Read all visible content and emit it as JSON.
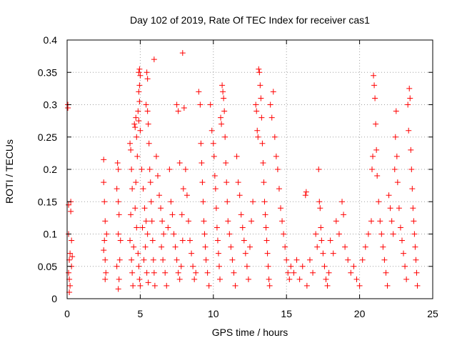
{
  "chart_data": {
    "type": "scatter",
    "title": "Day 102 of 2019, Rate Of TEC Index for receiver cas1",
    "xlabel": "GPS time / hours",
    "ylabel": "ROTI / TECUs",
    "xlim": [
      0,
      25
    ],
    "ylim": [
      0,
      0.4
    ],
    "xticks": [
      0,
      5,
      10,
      15,
      20,
      25
    ],
    "xtick_labels": [
      "0",
      "5",
      "10",
      "15",
      "20",
      "25"
    ],
    "yticks": [
      0,
      0.05,
      0.1,
      0.15,
      0.2,
      0.25,
      0.3,
      0.35,
      0.4
    ],
    "ytick_labels": [
      "0",
      "0.05",
      "0.1",
      "0.15",
      "0.2",
      "0.25",
      "0.3",
      "0.35",
      "0.4"
    ],
    "grid": true,
    "marker": "plus",
    "series": [
      {
        "name": "ROTI",
        "color": "#ff0000",
        "points": [
          [
            0.05,
            0.295
          ],
          [
            0.05,
            0.3
          ],
          [
            0.1,
            0.145
          ],
          [
            0.1,
            0.1
          ],
          [
            0.15,
            0.06
          ],
          [
            0.15,
            0.03
          ],
          [
            0.2,
            0.07
          ],
          [
            0.2,
            0.02
          ],
          [
            0.25,
            0.15
          ],
          [
            0.25,
            0.135
          ],
          [
            0.3,
            0.09
          ],
          [
            0.3,
            0.05
          ],
          [
            0.15,
            0.01
          ],
          [
            0.1,
            0.04
          ],
          [
            0.35,
            0.065
          ],
          [
            2.5,
            0.215
          ],
          [
            2.5,
            0.18
          ],
          [
            2.55,
            0.15
          ],
          [
            2.6,
            0.12
          ],
          [
            2.55,
            0.09
          ],
          [
            2.6,
            0.06
          ],
          [
            2.65,
            0.04
          ],
          [
            2.6,
            0.03
          ],
          [
            2.7,
            0.1
          ],
          [
            2.5,
            0.075
          ],
          [
            3.4,
            0.17
          ],
          [
            3.5,
            0.2
          ],
          [
            3.45,
            0.21
          ],
          [
            3.5,
            0.15
          ],
          [
            3.55,
            0.13
          ],
          [
            3.5,
            0.1
          ],
          [
            3.6,
            0.06
          ],
          [
            3.55,
            0.03
          ],
          [
            3.5,
            0.015
          ],
          [
            3.4,
            0.05
          ],
          [
            3.65,
            0.09
          ],
          [
            4.3,
            0.24
          ],
          [
            4.35,
            0.23
          ],
          [
            4.4,
            0.2
          ],
          [
            4.45,
            0.17
          ],
          [
            4.35,
            0.13
          ],
          [
            4.3,
            0.09
          ],
          [
            4.4,
            0.06
          ],
          [
            4.45,
            0.04
          ],
          [
            4.5,
            0.02
          ],
          [
            4.55,
            0.08
          ],
          [
            4.6,
            0.27
          ],
          [
            4.65,
            0.265
          ],
          [
            4.7,
            0.28
          ],
          [
            4.75,
            0.25
          ],
          [
            4.8,
            0.22
          ],
          [
            4.7,
            0.18
          ],
          [
            4.65,
            0.14
          ],
          [
            4.75,
            0.11
          ],
          [
            4.85,
            0.07
          ],
          [
            4.9,
            0.05
          ],
          [
            4.95,
            0.03
          ],
          [
            5.0,
            0.02
          ],
          [
            4.9,
            0.35
          ],
          [
            4.95,
            0.355
          ],
          [
            5.0,
            0.345
          ],
          [
            4.95,
            0.33
          ],
          [
            4.9,
            0.32
          ],
          [
            4.95,
            0.305
          ],
          [
            4.85,
            0.29
          ],
          [
            4.9,
            0.275
          ],
          [
            5.0,
            0.26
          ],
          [
            5.1,
            0.2
          ],
          [
            5.2,
            0.17
          ],
          [
            5.3,
            0.14
          ],
          [
            5.4,
            0.12
          ],
          [
            5.5,
            0.1
          ],
          [
            5.35,
            0.08
          ],
          [
            5.25,
            0.06
          ],
          [
            5.45,
            0.04
          ],
          [
            5.55,
            0.025
          ],
          [
            5.15,
            0.11
          ],
          [
            5.45,
            0.35
          ],
          [
            5.5,
            0.34
          ],
          [
            5.4,
            0.3
          ],
          [
            5.5,
            0.29
          ],
          [
            5.55,
            0.27
          ],
          [
            5.6,
            0.24
          ],
          [
            5.65,
            0.2
          ],
          [
            5.7,
            0.18
          ],
          [
            5.75,
            0.15
          ],
          [
            5.8,
            0.12
          ],
          [
            5.85,
            0.09
          ],
          [
            5.9,
            0.06
          ],
          [
            5.95,
            0.04
          ],
          [
            6.0,
            0.02
          ],
          [
            5.95,
            0.37
          ],
          [
            6.1,
            0.22
          ],
          [
            6.2,
            0.19
          ],
          [
            6.3,
            0.16
          ],
          [
            6.4,
            0.14
          ],
          [
            6.5,
            0.12
          ],
          [
            6.6,
            0.1
          ],
          [
            6.45,
            0.08
          ],
          [
            6.55,
            0.06
          ],
          [
            6.7,
            0.04
          ],
          [
            6.8,
            0.02
          ],
          [
            6.9,
            0.11
          ],
          [
            7.0,
            0.2
          ],
          [
            7.1,
            0.15
          ],
          [
            7.2,
            0.13
          ],
          [
            7.3,
            0.1
          ],
          [
            7.4,
            0.08
          ],
          [
            7.5,
            0.06
          ],
          [
            7.6,
            0.04
          ],
          [
            7.7,
            0.03
          ],
          [
            7.8,
            0.05
          ],
          [
            7.9,
            0.09
          ],
          [
            7.85,
            0.13
          ],
          [
            7.95,
            0.17
          ],
          [
            7.5,
            0.3
          ],
          [
            7.6,
            0.29
          ],
          [
            7.7,
            0.21
          ],
          [
            7.9,
            0.38
          ],
          [
            8.0,
            0.295
          ],
          [
            8.1,
            0.2
          ],
          [
            8.2,
            0.16
          ],
          [
            8.3,
            0.12
          ],
          [
            8.4,
            0.09
          ],
          [
            8.5,
            0.07
          ],
          [
            8.6,
            0.05
          ],
          [
            8.7,
            0.03
          ],
          [
            8.8,
            0.04
          ],
          [
            9.0,
            0.32
          ],
          [
            9.1,
            0.3
          ],
          [
            9.15,
            0.24
          ],
          [
            9.2,
            0.21
          ],
          [
            9.25,
            0.18
          ],
          [
            9.3,
            0.15
          ],
          [
            9.35,
            0.12
          ],
          [
            9.4,
            0.1
          ],
          [
            9.45,
            0.08
          ],
          [
            9.5,
            0.06
          ],
          [
            9.6,
            0.04
          ],
          [
            9.7,
            0.02
          ],
          [
            9.8,
            0.3
          ],
          [
            9.9,
            0.26
          ],
          [
            10.0,
            0.24
          ],
          [
            10.05,
            0.22
          ],
          [
            10.1,
            0.19
          ],
          [
            10.15,
            0.17
          ],
          [
            10.2,
            0.14
          ],
          [
            10.25,
            0.11
          ],
          [
            10.3,
            0.09
          ],
          [
            10.35,
            0.07
          ],
          [
            10.4,
            0.05
          ],
          [
            10.45,
            0.03
          ],
          [
            10.5,
            0.28
          ],
          [
            10.55,
            0.27
          ],
          [
            10.6,
            0.33
          ],
          [
            10.65,
            0.32
          ],
          [
            10.7,
            0.31
          ],
          [
            10.75,
            0.29
          ],
          [
            10.8,
            0.25
          ],
          [
            10.85,
            0.21
          ],
          [
            10.9,
            0.18
          ],
          [
            10.95,
            0.15
          ],
          [
            11.0,
            0.12
          ],
          [
            11.1,
            0.1
          ],
          [
            11.2,
            0.08
          ],
          [
            11.3,
            0.06
          ],
          [
            11.4,
            0.04
          ],
          [
            11.5,
            0.02
          ],
          [
            11.6,
            0.22
          ],
          [
            11.7,
            0.18
          ],
          [
            11.8,
            0.16
          ],
          [
            11.9,
            0.13
          ],
          [
            12.0,
            0.11
          ],
          [
            12.1,
            0.09
          ],
          [
            12.2,
            0.07
          ],
          [
            12.3,
            0.05
          ],
          [
            12.4,
            0.03
          ],
          [
            12.5,
            0.08
          ],
          [
            12.6,
            0.12
          ],
          [
            12.7,
            0.15
          ],
          [
            12.9,
            0.3
          ],
          [
            12.95,
            0.29
          ],
          [
            13.0,
            0.26
          ],
          [
            13.05,
            0.25
          ],
          [
            13.1,
            0.355
          ],
          [
            13.15,
            0.35
          ],
          [
            13.2,
            0.33
          ],
          [
            13.25,
            0.31
          ],
          [
            13.3,
            0.28
          ],
          [
            13.35,
            0.24
          ],
          [
            13.4,
            0.21
          ],
          [
            13.45,
            0.18
          ],
          [
            13.5,
            0.15
          ],
          [
            13.55,
            0.13
          ],
          [
            13.6,
            0.11
          ],
          [
            13.65,
            0.09
          ],
          [
            13.7,
            0.07
          ],
          [
            13.75,
            0.05
          ],
          [
            13.8,
            0.03
          ],
          [
            13.85,
            0.02
          ],
          [
            13.9,
            0.3
          ],
          [
            14.0,
            0.28
          ],
          [
            14.1,
            0.32
          ],
          [
            14.2,
            0.25
          ],
          [
            14.3,
            0.22
          ],
          [
            14.4,
            0.2
          ],
          [
            14.5,
            0.17
          ],
          [
            14.6,
            0.14
          ],
          [
            14.7,
            0.12
          ],
          [
            14.8,
            0.1
          ],
          [
            14.9,
            0.08
          ],
          [
            15.0,
            0.06
          ],
          [
            15.1,
            0.04
          ],
          [
            15.2,
            0.03
          ],
          [
            15.3,
            0.05
          ],
          [
            15.5,
            0.04
          ],
          [
            15.7,
            0.06
          ],
          [
            15.9,
            0.03
          ],
          [
            16.1,
            0.05
          ],
          [
            16.3,
            0.16
          ],
          [
            16.35,
            0.165
          ],
          [
            16.4,
            0.02
          ],
          [
            16.6,
            0.06
          ],
          [
            16.8,
            0.04
          ],
          [
            17.0,
            0.1
          ],
          [
            17.1,
            0.08
          ],
          [
            17.2,
            0.2
          ],
          [
            17.25,
            0.15
          ],
          [
            17.3,
            0.14
          ],
          [
            17.35,
            0.11
          ],
          [
            17.4,
            0.09
          ],
          [
            17.5,
            0.07
          ],
          [
            17.6,
            0.05
          ],
          [
            17.7,
            0.03
          ],
          [
            17.8,
            0.02
          ],
          [
            17.9,
            0.04
          ],
          [
            18.0,
            0.09
          ],
          [
            18.2,
            0.07
          ],
          [
            18.4,
            0.12
          ],
          [
            18.6,
            0.1
          ],
          [
            18.8,
            0.15
          ],
          [
            18.9,
            0.13
          ],
          [
            19.0,
            0.08
          ],
          [
            19.2,
            0.06
          ],
          [
            19.4,
            0.04
          ],
          [
            19.6,
            0.05
          ],
          [
            19.8,
            0.03
          ],
          [
            20.0,
            0.02
          ],
          [
            20.2,
            0.06
          ],
          [
            20.4,
            0.08
          ],
          [
            20.6,
            0.1
          ],
          [
            20.8,
            0.12
          ],
          [
            20.85,
            0.2
          ],
          [
            20.9,
            0.22
          ],
          [
            20.95,
            0.345
          ],
          [
            21.0,
            0.33
          ],
          [
            21.05,
            0.31
          ],
          [
            21.1,
            0.27
          ],
          [
            21.15,
            0.23
          ],
          [
            21.2,
            0.19
          ],
          [
            21.3,
            0.15
          ],
          [
            21.4,
            0.12
          ],
          [
            21.5,
            0.1
          ],
          [
            21.6,
            0.08
          ],
          [
            21.7,
            0.06
          ],
          [
            21.8,
            0.04
          ],
          [
            21.9,
            0.02
          ],
          [
            22.0,
            0.16
          ],
          [
            22.1,
            0.14
          ],
          [
            22.2,
            0.12
          ],
          [
            22.3,
            0.1
          ],
          [
            22.4,
            0.2
          ],
          [
            22.45,
            0.25
          ],
          [
            22.5,
            0.29
          ],
          [
            22.55,
            0.22
          ],
          [
            22.6,
            0.18
          ],
          [
            22.7,
            0.14
          ],
          [
            22.8,
            0.11
          ],
          [
            22.9,
            0.09
          ],
          [
            23.0,
            0.07
          ],
          [
            23.1,
            0.05
          ],
          [
            23.2,
            0.03
          ],
          [
            23.3,
            0.3
          ],
          [
            23.35,
            0.26
          ],
          [
            23.4,
            0.325
          ],
          [
            23.45,
            0.31
          ],
          [
            23.5,
            0.23
          ],
          [
            23.55,
            0.2
          ],
          [
            23.6,
            0.17
          ],
          [
            23.65,
            0.14
          ],
          [
            23.7,
            0.12
          ],
          [
            23.75,
            0.1
          ],
          [
            23.8,
            0.08
          ],
          [
            23.85,
            0.06
          ],
          [
            23.9,
            0.04
          ],
          [
            23.95,
            0.02
          ]
        ]
      }
    ]
  }
}
